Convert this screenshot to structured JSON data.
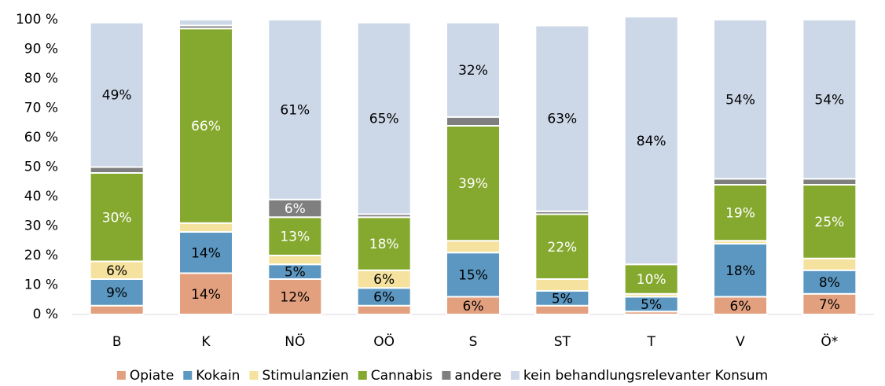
{
  "chart_data": {
    "type": "stacked_bar",
    "categories": [
      "B",
      "K",
      "NÖ",
      "OÖ",
      "S",
      "ST",
      "T",
      "V",
      "Ö*"
    ],
    "ylim": [
      0,
      100
    ],
    "yticks": [
      {
        "value": 0,
        "label": "0 %"
      },
      {
        "value": 10,
        "label": "10 %"
      },
      {
        "value": 20,
        "label": "20 %"
      },
      {
        "value": 30,
        "label": "30 %"
      },
      {
        "value": 40,
        "label": "40 %"
      },
      {
        "value": 50,
        "label": "50 %"
      },
      {
        "value": 60,
        "label": "60 %"
      },
      {
        "value": 70,
        "label": "70 %"
      },
      {
        "value": 80,
        "label": "80 %"
      },
      {
        "value": 90,
        "label": "90 %"
      },
      {
        "value": 100,
        "label": "100 %"
      }
    ],
    "legend": "bottom",
    "series": [
      {
        "name": "Opiate",
        "color": "#e3a07e",
        "label_color": "#000",
        "values": [
          3,
          14,
          12,
          3,
          6,
          3,
          1,
          6,
          7
        ],
        "value_labels": [
          null,
          "14%",
          "12%",
          null,
          "6%",
          null,
          null,
          "6%",
          "7%"
        ]
      },
      {
        "name": "Kokain",
        "color": "#5b97c1",
        "label_color": "#000",
        "values": [
          9,
          14,
          5,
          6,
          15,
          5,
          5,
          18,
          8
        ],
        "value_labels": [
          "9%",
          "14%",
          "5%",
          "6%",
          "15%",
          "5%",
          "5%",
          "18%",
          "8%"
        ]
      },
      {
        "name": "Stimulanzien",
        "color": "#f5e29e",
        "label_color": "#000",
        "values": [
          6,
          3,
          3,
          6,
          4,
          4,
          1,
          1,
          4
        ],
        "value_labels": [
          "6%",
          null,
          null,
          "6%",
          null,
          null,
          null,
          null,
          null
        ]
      },
      {
        "name": "Cannabis",
        "color": "#85a82f",
        "label_color": "#fff",
        "values": [
          30,
          66,
          13,
          18,
          39,
          22,
          10,
          19,
          25
        ],
        "value_labels": [
          "30%",
          "66%",
          "13%",
          "18%",
          "39%",
          "22%",
          "10%",
          "19%",
          "25%"
        ]
      },
      {
        "name": "andere",
        "color": "#7f7f7f",
        "label_color": "#fff",
        "values": [
          2,
          1,
          6,
          1,
          3,
          1,
          0,
          2,
          2
        ],
        "value_labels": [
          null,
          null,
          "6%",
          null,
          null,
          null,
          null,
          null,
          null
        ]
      },
      {
        "name": "kein behandlungsrelevanter Konsum",
        "color": "#ccd7e8",
        "label_color": "#000",
        "values": [
          49,
          2,
          61,
          65,
          32,
          63,
          84,
          54,
          54
        ],
        "value_labels": [
          "49%",
          null,
          "61%",
          "65%",
          "32%",
          "63%",
          "84%",
          "54%",
          "54%"
        ]
      }
    ]
  }
}
